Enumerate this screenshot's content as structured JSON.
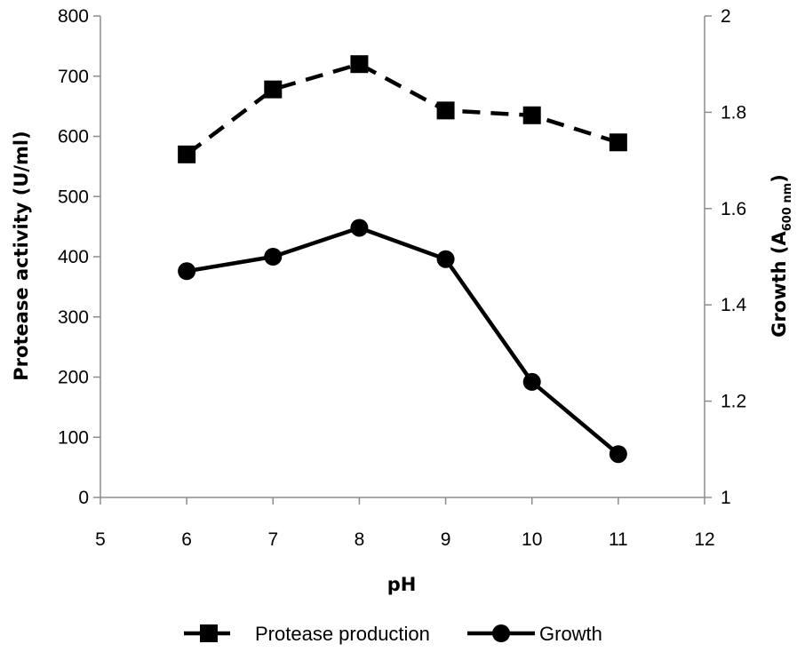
{
  "chart_data": {
    "type": "line",
    "x": [
      6,
      7,
      8,
      9,
      10,
      11
    ],
    "xlabel": "pH",
    "xlim": [
      5,
      12
    ],
    "xticks": [
      "5",
      "6",
      "7",
      "8",
      "9",
      "10",
      "11",
      "12"
    ],
    "ylabel": "Protease activity (U/ml)",
    "ylim": [
      0,
      800
    ],
    "yticks": [
      "0",
      "100",
      "200",
      "300",
      "400",
      "500",
      "600",
      "700",
      "800"
    ],
    "y2label": {
      "main": "Growth (A",
      "sub": "600 nm",
      "close": ")"
    },
    "y2lim": [
      1,
      2
    ],
    "y2ticks": [
      "1",
      "1.2",
      "1.4",
      "1.6",
      "1.8",
      "2"
    ],
    "series": [
      {
        "name": "Protease production",
        "axis": "left",
        "marker": "square",
        "line_style": "dashed",
        "color": "#000000",
        "values": [
          570,
          678,
          720,
          643,
          635,
          590
        ]
      },
      {
        "name": "Growth",
        "axis": "right",
        "marker": "circle",
        "line_style": "solid",
        "color": "#000000",
        "values": [
          1.47,
          1.5,
          1.56,
          1.495,
          1.24,
          1.09
        ]
      }
    ],
    "grid": false,
    "legend_position": "bottom"
  }
}
